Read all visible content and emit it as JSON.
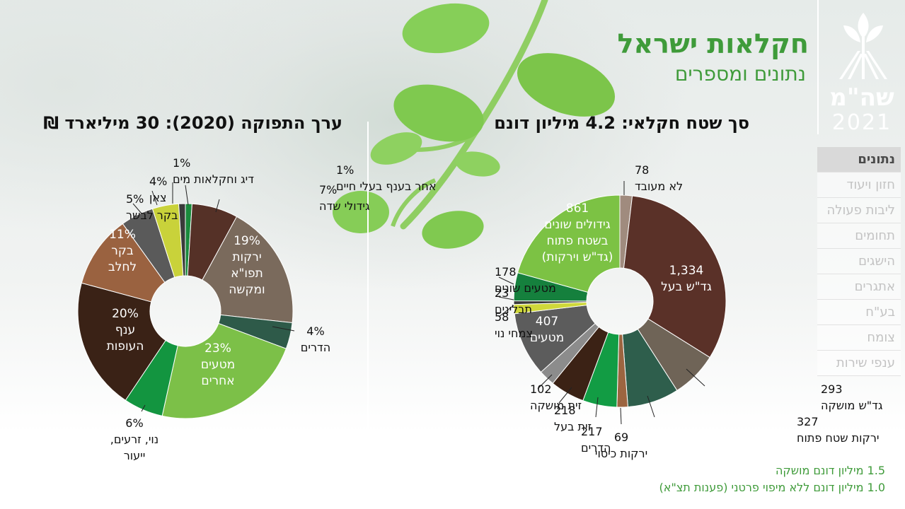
{
  "header": {
    "title": "חקלאות ישראל",
    "subtitle": "נתונים ומספרים",
    "logo_text": "שה\"מ",
    "logo_year": "2021"
  },
  "nav": {
    "items": [
      {
        "label": "נתונים",
        "active": true
      },
      {
        "label": "חזון ויעוד",
        "active": false
      },
      {
        "label": "ליבות פעולה",
        "active": false
      },
      {
        "label": "תחומים",
        "active": false
      },
      {
        "label": "הישגים",
        "active": false
      },
      {
        "label": "אתגרים",
        "active": false
      },
      {
        "label": "בע\"ח",
        "active": false
      },
      {
        "label": "צומח",
        "active": false
      },
      {
        "label": "ענפי שירות",
        "active": false
      }
    ]
  },
  "footnotes": [
    "1.5 מיליון דונם מושקה",
    "1.0 מיליון דונם ללא מיפוי פרטני (פענות תצ\"א)"
  ],
  "chart_data": [
    {
      "type": "pie",
      "donut": true,
      "title": "ערך התפוקה (2020): 30 מיליארד ₪",
      "slices": [
        {
          "label": "אחר בענף בעלי חיים",
          "value": 1,
          "display": "1% | אחר בענף בעלי חיים",
          "color": "#1a8a3c"
        },
        {
          "label": "גידולי שדה",
          "value": 7,
          "display": "7% | גידולי שדה",
          "color": "#553127"
        },
        {
          "label": "ירקות תפו\"א ומקשה",
          "value": 19,
          "display": "19%|ירקות|תפו\"א|ומקשה",
          "color": "#7a6a5c"
        },
        {
          "label": "הדרים",
          "value": 4,
          "display": "4%|הדרים",
          "color": "#2e5a49"
        },
        {
          "label": "מטעים אחרים",
          "value": 23,
          "display": "23%|מטעים|אחרים",
          "color": "#7cc048"
        },
        {
          "label": "נוי, זרעים, ייעור",
          "value": 6,
          "display": "6%|נוי, זרעים,|ייעור",
          "color": "#139540"
        },
        {
          "label": "ענף העופות",
          "value": 20,
          "display": "20%|ענף|העופות",
          "color": "#3a2216"
        },
        {
          "label": "בקר לחלב",
          "value": 11,
          "display": "11%|בקר|לחלב",
          "color": "#9a6240"
        },
        {
          "label": "בקר לבשר",
          "value": 5,
          "display": "5% | בקר לבשר",
          "color": "#5a5a5a"
        },
        {
          "label": "צאן",
          "value": 4,
          "display": "4% | צאן",
          "color": "#c9d23a"
        },
        {
          "label": "דיג וחקלאות מים",
          "value": 1,
          "display": "1% | דיג וחקלאות מים",
          "color": "#3a3a3a"
        }
      ]
    },
    {
      "type": "pie",
      "donut": true,
      "title": "סך שטח חקלאי: 4.2 מיליון דונם",
      "slices": [
        {
          "label": "לא מעובד",
          "value": 78,
          "display": "78 | לא מעובד",
          "color": "#a08b7e"
        },
        {
          "label": "גד\"ש בעל",
          "value": 1334,
          "display": "1,334|גד\"ש בעל",
          "color": "#5a3128"
        },
        {
          "label": "גד\"ש מושקה",
          "value": 293,
          "display": "293 | גד\"ש מושקה",
          "color": "#6f6457"
        },
        {
          "label": "ירקות שטח פתוח",
          "value": 327,
          "display": "327 | ירקות שטח פתוח",
          "color": "#2e5e4c"
        },
        {
          "label": "ירקות כיסוי",
          "value": 69,
          "display": "69|ירקות כיסוי",
          "color": "#9c6540"
        },
        {
          "label": "הדרים",
          "value": 217,
          "display": "217 | הדרים",
          "color": "#129c44"
        },
        {
          "label": "זית בעל",
          "value": 218,
          "display": "218 | זית בעל",
          "color": "#3b2215"
        },
        {
          "label": "זית מושקה",
          "value": 102,
          "display": "102 | זית מושקה",
          "color": "#8c8c8c"
        },
        {
          "label": "מטעים",
          "value": 407,
          "display": "407|מטעים",
          "color": "#5c5c5c"
        },
        {
          "label": "צמחי נוי",
          "value": 58,
          "display": "58 | צמחי נוי",
          "color": "#cfd83a"
        },
        {
          "label": "תבלינים",
          "value": 23,
          "display": "23 | תבלינים",
          "color": "#3a3a3a"
        },
        {
          "label": "מטעים שונים",
          "value": 178,
          "display": "178 | מטעים שונים",
          "color": "#15803d"
        },
        {
          "label": "גידולים שונים בשטח פתוח (גד\"ש וירקות)",
          "value": 861,
          "display": "861|גידולים שונים|בשטח פתוח|(גד\"ש וירקות)",
          "color": "#7cc244"
        }
      ]
    }
  ]
}
